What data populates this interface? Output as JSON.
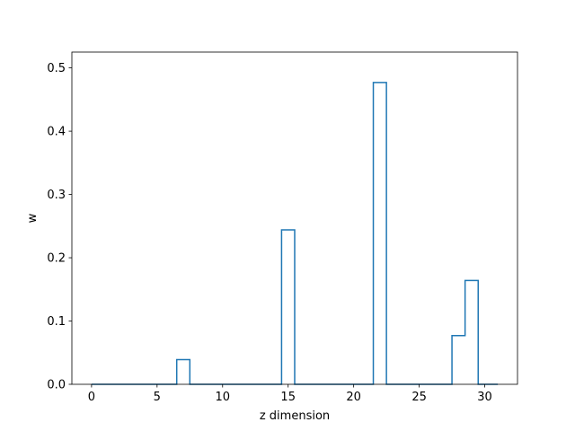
{
  "chart_data": {
    "type": "line",
    "style": "step-histogram",
    "xlabel": "z dimension",
    "ylabel": "w",
    "title": "",
    "xlim": [
      -1.5,
      32.5
    ],
    "ylim": [
      0.0,
      0.525
    ],
    "xticks": [
      0,
      5,
      10,
      15,
      20,
      25,
      30
    ],
    "yticks": [
      0.0,
      0.1,
      0.2,
      0.3,
      0.4,
      0.5
    ],
    "xtick_labels": [
      "0",
      "5",
      "10",
      "15",
      "20",
      "25",
      "30"
    ],
    "ytick_labels": [
      "0.0",
      "0.1",
      "0.2",
      "0.3",
      "0.4",
      "0.5"
    ],
    "grid": false,
    "legend": "none",
    "line_color": "#1f77b4",
    "series": [
      {
        "x": [
          0,
          1,
          2,
          3,
          4,
          5,
          6,
          7,
          8,
          9,
          10,
          11,
          12,
          13,
          14,
          15,
          16,
          17,
          18,
          19,
          20,
          21,
          22,
          23,
          24,
          25,
          26,
          27,
          28,
          29,
          30,
          31
        ],
        "values": [
          0,
          0,
          0,
          0,
          0,
          0,
          0,
          0.039,
          0,
          0,
          0,
          0,
          0,
          0,
          0,
          0.244,
          0,
          0,
          0,
          0,
          0,
          0,
          0.477,
          0,
          0,
          0,
          0,
          0,
          0.077,
          0.164,
          0,
          0
        ]
      }
    ]
  }
}
